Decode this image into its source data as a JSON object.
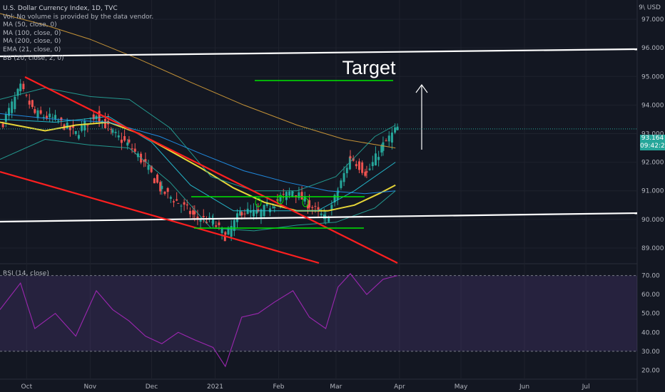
{
  "header": {
    "title": "U.S. Dollar Currency Index, 1D, TVC",
    "vol_note": "Vol: No volume is provided by the data vendor.",
    "indicators": [
      "MA (50, close, 0)",
      "MA (100, close, 0)",
      "MA (200, close, 0)",
      "EMA (21, close, 0)",
      "BB (20, close, 2, 0)"
    ],
    "rsi_label": "RSI (14, close)",
    "unit_label": "9\\ USD"
  },
  "price_tag": {
    "value": "93.164",
    "countdown": "09:42:25"
  },
  "annotation": {
    "target_label": "Target"
  },
  "colors": {
    "background": "#131722",
    "up": "#26a69a",
    "down": "#ef5350",
    "ma50": "#ffeb3b",
    "ma100": "#2196f3",
    "ma200": "#d8a03a",
    "ema": "#26c6da",
    "bb": "#26a69a",
    "trendline": "#ff1f1f",
    "channel": "#ffffff",
    "support": "#00e600",
    "rsi_line": "#9c27b0",
    "rsi_band": "#7e57c2"
  },
  "chart_data": [
    {
      "type": "candlestick",
      "title": "U.S. Dollar Currency Index, 1D, TVC",
      "x_ticks": [
        "Oct",
        "Nov",
        "Dec",
        "2021",
        "Feb",
        "Mar",
        "Apr",
        "May",
        "Jun",
        "Jul"
      ],
      "y_ticks": [
        "97.000",
        "96.000",
        "95.000",
        "94.000",
        "93.000",
        "92.000",
        "91.000",
        "90.000",
        "89.000"
      ],
      "ylim": [
        88.5,
        97.5
      ],
      "last_price": 93.164,
      "series": [
        {
          "name": "MA (50, close, 0)",
          "x": [
            "2020-09-18",
            "2020-10-10",
            "2020-10-25",
            "2020-11-10",
            "2020-11-25",
            "2020-12-10",
            "2020-12-25",
            "2021-01-10",
            "2021-01-25",
            "2021-02-10",
            "2021-02-25",
            "2021-03-10",
            "2021-03-22",
            "2021-03-30"
          ],
          "values": [
            93.4,
            93.1,
            93.3,
            93.4,
            93.0,
            92.4,
            91.8,
            91.1,
            90.6,
            90.3,
            90.3,
            90.5,
            90.9,
            91.2
          ]
        },
        {
          "name": "MA (100, close, 0)",
          "x": [
            "2020-09-18",
            "2020-10-15",
            "2020-11-10",
            "2020-12-05",
            "2020-12-25",
            "2021-01-15",
            "2021-02-05",
            "2021-02-25",
            "2021-03-15",
            "2021-03-30"
          ],
          "values": [
            93.7,
            93.5,
            93.4,
            92.9,
            92.3,
            91.7,
            91.3,
            91.0,
            90.9,
            91.0
          ]
        },
        {
          "name": "MA (200, close, 0)",
          "x": [
            "2020-09-18",
            "2020-10-10",
            "2020-11-01",
            "2020-11-25",
            "2020-12-20",
            "2021-01-15",
            "2021-02-10",
            "2021-03-05",
            "2021-03-30"
          ],
          "values": [
            97.2,
            96.8,
            96.3,
            95.6,
            94.8,
            94.0,
            93.3,
            92.8,
            92.5
          ]
        },
        {
          "name": "EMA (21, close, 0)",
          "x": [
            "2020-09-18",
            "2020-10-15",
            "2020-11-10",
            "2020-12-01",
            "2020-12-20",
            "2021-01-10",
            "2021-01-31",
            "2021-02-20",
            "2021-03-10",
            "2021-03-30"
          ],
          "values": [
            93.5,
            93.4,
            93.6,
            92.7,
            91.2,
            90.3,
            90.3,
            90.3,
            91.0,
            92.0
          ]
        },
        {
          "name": "BB (20, close, 2, 0) upper",
          "x": [
            "2020-09-18",
            "2020-10-10",
            "2020-11-01",
            "2020-11-20",
            "2020-12-10",
            "2020-12-30",
            "2021-01-20",
            "2021-02-10",
            "2021-03-01",
            "2021-03-20",
            "2021-03-30"
          ],
          "values": [
            94.2,
            94.6,
            94.3,
            94.2,
            93.2,
            91.5,
            91.0,
            91.0,
            91.5,
            92.9,
            93.3
          ]
        },
        {
          "name": "BB (20, close, 2, 0) lower",
          "x": [
            "2020-09-18",
            "2020-10-10",
            "2020-11-01",
            "2020-11-20",
            "2020-12-10",
            "2020-12-30",
            "2021-01-20",
            "2021-02-10",
            "2021-03-01",
            "2021-03-20",
            "2021-03-30"
          ],
          "values": [
            92.1,
            92.8,
            92.6,
            92.5,
            91.3,
            89.7,
            89.6,
            89.8,
            89.9,
            90.4,
            91.0
          ]
        },
        {
          "name": "Close",
          "x": [
            "2020-09-18",
            "2020-09-28",
            "2020-10-05",
            "2020-10-15",
            "2020-10-25",
            "2020-11-04",
            "2020-11-12",
            "2020-11-20",
            "2020-11-28",
            "2020-12-06",
            "2020-12-14",
            "2020-12-22",
            "2020-12-31",
            "2021-01-06",
            "2021-01-14",
            "2021-01-22",
            "2021-01-30",
            "2021-02-08",
            "2021-02-16",
            "2021-02-24",
            "2021-03-02",
            "2021-03-08",
            "2021-03-16",
            "2021-03-24",
            "2021-03-31"
          ],
          "values": [
            93.2,
            94.6,
            93.7,
            93.5,
            93.0,
            93.7,
            93.0,
            92.6,
            91.9,
            91.0,
            90.6,
            90.1,
            89.9,
            89.4,
            90.3,
            90.2,
            90.6,
            91.0,
            90.5,
            90.0,
            91.0,
            92.2,
            91.6,
            92.6,
            93.2
          ]
        }
      ]
    },
    {
      "type": "line",
      "title": "RSI (14, close)",
      "y_ticks": [
        "70.00",
        "60.00",
        "50.00",
        "40.00",
        "30.00",
        "20.00"
      ],
      "ylim": [
        16,
        74
      ],
      "bands": [
        30,
        70
      ],
      "series": [
        {
          "name": "RSI (14, close)",
          "x": [
            "2020-09-18",
            "2020-09-28",
            "2020-10-05",
            "2020-10-15",
            "2020-10-25",
            "2020-11-04",
            "2020-11-12",
            "2020-11-20",
            "2020-11-28",
            "2020-12-06",
            "2020-12-14",
            "2020-12-22",
            "2020-12-31",
            "2021-01-06",
            "2021-01-14",
            "2021-01-22",
            "2021-01-30",
            "2021-02-08",
            "2021-02-16",
            "2021-02-24",
            "2021-03-02",
            "2021-03-08",
            "2021-03-16",
            "2021-03-24",
            "2021-03-31"
          ],
          "values": [
            52,
            66,
            42,
            50,
            38,
            62,
            52,
            46,
            38,
            34,
            40,
            36,
            32,
            22,
            48,
            50,
            56,
            62,
            48,
            42,
            64,
            71,
            60,
            68,
            70
          ]
        }
      ]
    }
  ]
}
